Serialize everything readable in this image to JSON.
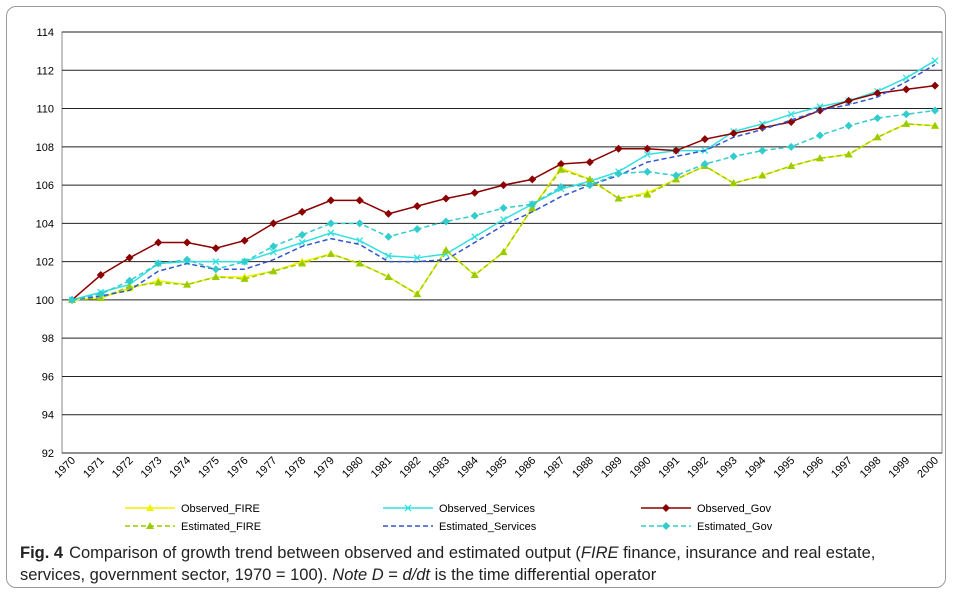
{
  "chart_data": {
    "type": "line",
    "categories": [
      "1970",
      "1971",
      "1972",
      "1973",
      "1974",
      "1975",
      "1976",
      "1977",
      "1978",
      "1979",
      "1980",
      "1981",
      "1982",
      "1983",
      "1984",
      "1985",
      "1986",
      "1987",
      "1988",
      "1989",
      "1990",
      "1991",
      "1992",
      "1993",
      "1994",
      "1995",
      "1996",
      "1997",
      "1998",
      "1999",
      "2000"
    ],
    "ylim": [
      92,
      114
    ],
    "yticks": [
      92,
      94,
      96,
      98,
      100,
      102,
      104,
      106,
      108,
      110,
      112,
      114
    ],
    "grid": true,
    "series": [
      {
        "name": "Observed_FIRE",
        "color": "#f2f200",
        "dash": false,
        "marker": "triangle",
        "values": [
          100,
          100.1,
          100.6,
          101.0,
          100.8,
          101.2,
          101.2,
          101.5,
          102.0,
          102.4,
          101.9,
          101.2,
          100.3,
          102.6,
          101.3,
          102.5,
          104.8,
          106.9,
          106.3,
          105.3,
          105.6,
          106.3,
          107.0,
          106.1,
          106.5,
          107.0,
          107.4,
          107.6,
          108.5,
          109.2,
          109.1
        ]
      },
      {
        "name": "Observed_Services",
        "color": "#33e0e0",
        "dash": false,
        "marker": "x",
        "values": [
          100,
          100.4,
          100.8,
          101.9,
          102.0,
          102.0,
          102.0,
          102.5,
          103.0,
          103.5,
          103.1,
          102.3,
          102.2,
          102.4,
          103.3,
          104.2,
          105.0,
          105.8,
          106.2,
          106.7,
          107.6,
          107.8,
          107.8,
          108.8,
          109.2,
          109.7,
          110.1,
          110.4,
          110.9,
          111.6,
          112.5
        ]
      },
      {
        "name": "Observed_Gov",
        "color": "#8b0000",
        "dash": false,
        "marker": "diamond",
        "values": [
          100,
          101.3,
          102.2,
          103.0,
          103.0,
          102.7,
          103.1,
          104.0,
          104.6,
          105.2,
          105.2,
          104.5,
          104.9,
          105.3,
          105.6,
          106.0,
          106.3,
          107.1,
          107.2,
          107.9,
          107.9,
          107.8,
          108.4,
          108.7,
          109.0,
          109.3,
          109.9,
          110.4,
          110.8,
          111.0,
          111.2
        ]
      },
      {
        "name": "Estimated_FIRE",
        "color": "#99cc00",
        "dash": true,
        "marker": "triangle",
        "values": [
          100,
          100.1,
          100.7,
          100.9,
          100.8,
          101.2,
          101.1,
          101.5,
          101.9,
          102.4,
          101.9,
          101.2,
          100.3,
          102.6,
          101.3,
          102.5,
          104.8,
          106.8,
          106.3,
          105.3,
          105.5,
          106.3,
          107.0,
          106.1,
          106.5,
          107.0,
          107.4,
          107.6,
          108.5,
          109.2,
          109.1
        ]
      },
      {
        "name": "Estimated_Services",
        "color": "#3355cc",
        "dash": true,
        "marker": "none",
        "values": [
          100,
          100.2,
          100.5,
          101.5,
          101.9,
          101.6,
          101.6,
          102.1,
          102.8,
          103.2,
          102.9,
          102.0,
          102.0,
          102.1,
          103.0,
          103.9,
          104.6,
          105.4,
          106.0,
          106.5,
          107.2,
          107.5,
          107.8,
          108.5,
          108.9,
          109.4,
          109.9,
          110.2,
          110.6,
          111.4,
          112.3
        ]
      },
      {
        "name": "Estimated_Gov",
        "color": "#33cccc",
        "dash": true,
        "marker": "diamond",
        "values": [
          100,
          100.3,
          101.0,
          101.9,
          102.1,
          101.6,
          102.0,
          102.8,
          103.4,
          104.0,
          104.0,
          103.3,
          103.7,
          104.1,
          104.4,
          104.8,
          105.0,
          105.9,
          106.0,
          106.6,
          106.7,
          106.5,
          107.1,
          107.5,
          107.8,
          108.0,
          108.6,
          109.1,
          109.5,
          109.7,
          109.9
        ]
      }
    ]
  },
  "caption": {
    "label": "Fig. 4",
    "parts": [
      "Comparison of growth trend between observed and estimated output (",
      "FIRE",
      " finance, insurance and real estate, services, government sector, 1970 = 100). ",
      "Note D",
      " = ",
      "d/dt",
      " is the time differential operator"
    ]
  }
}
